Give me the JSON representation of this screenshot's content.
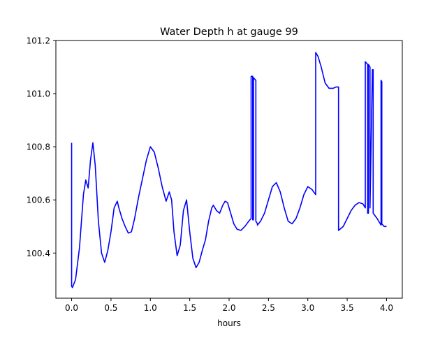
{
  "chart_data": {
    "type": "line",
    "title": "Water Depth h at gauge 99",
    "xlabel": "hours",
    "ylabel": "",
    "xlim": [
      -0.2,
      4.2
    ],
    "ylim": [
      100.23,
      101.2
    ],
    "xticks": [
      0.0,
      0.5,
      1.0,
      1.5,
      2.0,
      2.5,
      3.0,
      3.5,
      4.0
    ],
    "xtick_labels": [
      "0.0",
      "0.5",
      "1.0",
      "1.5",
      "2.0",
      "2.5",
      "3.0",
      "3.5",
      "4.0"
    ],
    "yticks": [
      100.4,
      100.6,
      100.8,
      101.0,
      101.2
    ],
    "ytick_labels": [
      "100.4",
      "100.6",
      "100.8",
      "101.0",
      "101.2"
    ],
    "grid": false,
    "series": [
      {
        "color": "#0000ff",
        "x": [
          0.0,
          0.0,
          0.01,
          0.05,
          0.1,
          0.15,
          0.18,
          0.21,
          0.24,
          0.27,
          0.3,
          0.34,
          0.38,
          0.42,
          0.46,
          0.5,
          0.54,
          0.58,
          0.6,
          0.64,
          0.68,
          0.72,
          0.76,
          0.8,
          0.85,
          0.9,
          0.95,
          1.0,
          1.05,
          1.1,
          1.15,
          1.2,
          1.24,
          1.27,
          1.3,
          1.34,
          1.38,
          1.42,
          1.46,
          1.5,
          1.54,
          1.58,
          1.62,
          1.66,
          1.7,
          1.74,
          1.78,
          1.8,
          1.84,
          1.88,
          1.92,
          1.95,
          1.98,
          2.02,
          2.06,
          2.1,
          2.15,
          2.2,
          2.25,
          2.28,
          2.28,
          2.3,
          2.3,
          2.31,
          2.31,
          2.34,
          2.34,
          2.36,
          2.36,
          2.4,
          2.45,
          2.5,
          2.55,
          2.6,
          2.65,
          2.7,
          2.75,
          2.8,
          2.85,
          2.9,
          2.95,
          3.0,
          3.05,
          3.1,
          3.1,
          3.13,
          3.17,
          3.22,
          3.27,
          3.32,
          3.36,
          3.39,
          3.39,
          3.45,
          3.5,
          3.55,
          3.6,
          3.65,
          3.7,
          3.73,
          3.73,
          3.76,
          3.76,
          3.77,
          3.77,
          3.79,
          3.79,
          3.82,
          3.83,
          3.83,
          3.88,
          3.93,
          3.93,
          3.94,
          3.94,
          3.97,
          4.0
        ],
        "values": [
          100.815,
          100.275,
          100.27,
          100.3,
          100.42,
          100.62,
          100.675,
          100.645,
          100.75,
          100.815,
          100.73,
          100.52,
          100.4,
          100.365,
          100.41,
          100.48,
          100.57,
          100.595,
          100.57,
          100.53,
          100.5,
          100.475,
          100.48,
          100.53,
          100.61,
          100.68,
          100.75,
          100.8,
          100.78,
          100.72,
          100.65,
          100.595,
          100.63,
          100.6,
          100.48,
          100.39,
          100.43,
          100.56,
          100.6,
          100.48,
          100.38,
          100.345,
          100.365,
          100.41,
          100.45,
          100.52,
          100.57,
          100.58,
          100.56,
          100.55,
          100.58,
          100.595,
          100.59,
          100.55,
          100.51,
          100.49,
          100.485,
          100.5,
          100.52,
          100.53,
          101.065,
          101.065,
          100.525,
          100.525,
          101.06,
          101.05,
          100.52,
          100.51,
          100.505,
          100.52,
          100.55,
          100.6,
          100.65,
          100.665,
          100.63,
          100.57,
          100.52,
          100.51,
          100.53,
          100.57,
          100.62,
          100.65,
          100.64,
          100.62,
          101.155,
          101.14,
          101.1,
          101.04,
          101.02,
          101.02,
          101.025,
          101.025,
          100.485,
          100.5,
          100.53,
          100.56,
          100.58,
          100.59,
          100.585,
          100.57,
          101.12,
          101.11,
          100.55,
          100.55,
          101.11,
          101.1,
          100.57,
          101.09,
          101.09,
          100.55,
          100.53,
          100.505,
          101.05,
          101.045,
          100.51,
          100.5,
          100.5
        ]
      }
    ]
  }
}
